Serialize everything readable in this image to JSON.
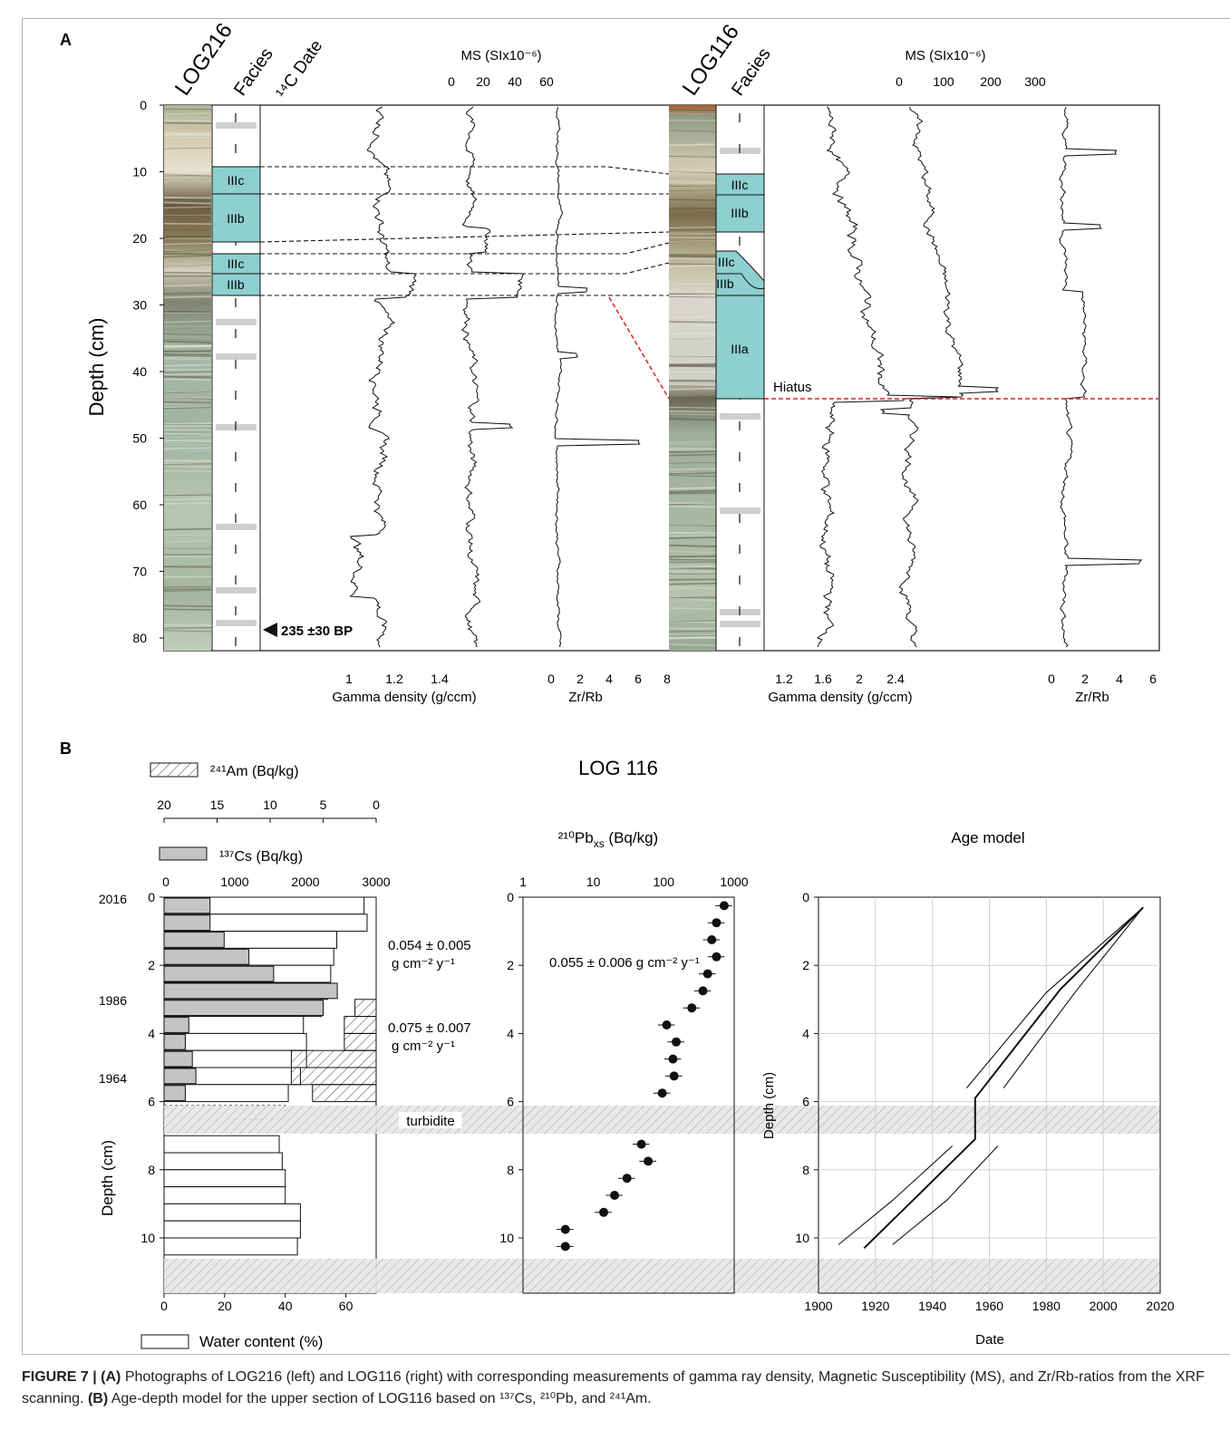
{
  "panel_a": {
    "label": "A",
    "core_left": "LOG216",
    "core_right": "LOG116",
    "facies": "Facies",
    "date_header": "¹⁴C Date",
    "ms_header": "MS (SIx10⁻⁶)",
    "depth_label": "Depth (cm)",
    "date_marker": "235 ±30 BP",
    "hiatus": "Hiatus",
    "gamma_label": "Gamma density (g/ccm)",
    "zr_label": "Zr/Rb",
    "units_left": [
      "IIIc",
      "IIIb",
      "IIIc",
      "IIIb"
    ],
    "units_right": [
      "IIIc",
      "IIIb",
      "IIIc",
      "IIIb",
      "IIIa"
    ],
    "depth_ticks": [
      "0",
      "10",
      "20",
      "30",
      "40",
      "50",
      "60",
      "70",
      "80"
    ],
    "ms_ticks_left": [
      "0",
      "20",
      "40",
      "60"
    ],
    "ms_ticks_right": [
      "0",
      "100",
      "200",
      "300"
    ],
    "gamma_ticks_left": [
      "1",
      "1.2",
      "1.4"
    ],
    "gamma_ticks_right": [
      "1.2",
      "1.6",
      "2",
      "2.4"
    ],
    "zr_ticks_left": [
      "0",
      "2",
      "4",
      "6",
      "8"
    ],
    "zr_ticks_right": [
      "0",
      "2",
      "4",
      "6"
    ]
  },
  "panel_b": {
    "label": "B",
    "title": "LOG 116",
    "am_label": "²⁴¹Am (Bq/kg)",
    "cs_label": "¹³⁷Cs (Bq/kg)",
    "water_label": "Water content (%)",
    "pb_label": "²¹⁰Pb",
    "pb_label_sub": "xs",
    "pb_label_unit": " (Bq/kg)",
    "age_title": "Age model",
    "depth_label": "Depth (cm)",
    "date_label": "Date",
    "turbidite": "turbidite",
    "years": [
      "2016",
      "1986",
      "1964"
    ],
    "rate1": "0.054 ± 0.005",
    "rate1_unit": "g cm⁻² y⁻¹",
    "rate2": "0.075 ± 0.007",
    "rate2_unit": "g cm⁻² y⁻¹",
    "rate3": "0.055 ± 0.006 g cm⁻² y⁻¹",
    "am_ticks": [
      "20",
      "15",
      "10",
      "5",
      "0"
    ],
    "cs_ticks": [
      "0",
      "1000",
      "2000",
      "3000"
    ],
    "water_ticks": [
      "0",
      "20",
      "40",
      "60"
    ],
    "pb_ticks": [
      "1",
      "10",
      "100",
      "1000"
    ],
    "date_ticks": [
      "1900",
      "1920",
      "1940",
      "1960",
      "1980",
      "2000",
      "2020"
    ],
    "depth_ticks": [
      "0",
      "2",
      "4",
      "6",
      "8",
      "10"
    ]
  },
  "chart_data": [
    {
      "type": "bar",
      "title": "",
      "xlabel": "¹³⁷Cs (Bq/kg)",
      "ylabel": "Depth (cm)",
      "categories": [
        "0.25",
        "0.75",
        "1.25",
        "1.75",
        "2.25",
        "2.75",
        "3.25",
        "3.75",
        "4.25",
        "4.75",
        "5.25",
        "5.75"
      ],
      "series": [
        {
          "name": "¹³⁷Cs (Bq/kg)",
          "values": [
            650,
            650,
            850,
            1200,
            1550,
            2450,
            2250,
            350,
            300,
            400,
            450,
            300
          ]
        },
        {
          "name": "Water content (%)",
          "values": [
            66,
            67,
            57,
            56,
            55,
            54,
            52,
            46,
            47,
            47,
            45,
            41
          ]
        },
        {
          "name": "²⁴¹Am (Bq/kg)",
          "values": [
            0,
            0,
            0,
            0,
            0,
            0,
            2,
            3,
            3,
            8,
            8,
            6
          ]
        }
      ],
      "lower_water_content": {
        "depths": [
          7.25,
          7.75,
          8.25,
          8.75,
          9.25,
          9.75,
          10.25
        ],
        "values": [
          38,
          39,
          40,
          40,
          45,
          45,
          44
        ]
      },
      "xlim_cs": [
        0,
        3000
      ],
      "xlim_water": [
        0,
        70
      ],
      "ylim": [
        0,
        11.5
      ]
    },
    {
      "type": "scatter",
      "title": "",
      "xlabel": "²¹⁰Pbxs (Bq/kg)",
      "ylabel": "",
      "x_scale": "log",
      "x": [
        720,
        560,
        480,
        560,
        420,
        360,
        250,
        110,
        150,
        135,
        140,
        95,
        48,
        60,
        30,
        20,
        14,
        4,
        4
      ],
      "y": [
        0.25,
        0.75,
        1.25,
        1.75,
        2.25,
        2.75,
        3.25,
        3.75,
        4.25,
        4.75,
        5.25,
        5.75,
        7.25,
        7.75,
        8.25,
        8.75,
        9.25,
        9.75,
        10.25
      ],
      "xlim": [
        1,
        1000
      ],
      "ylim": [
        0,
        11.5
      ]
    },
    {
      "type": "line",
      "title": "Age model",
      "xlabel": "Date",
      "ylabel": "Depth (cm)",
      "series": [
        {
          "name": "",
          "x": [
            2014,
            1985,
            1955,
            1955,
            1938,
            1916
          ],
          "y": [
            0.3,
            2.7,
            5.9,
            7.1,
            8.5,
            10.3
          ]
        },
        {
          "name": "",
          "x": [
            2014,
            1980,
            1952
          ],
          "y": [
            0.3,
            2.8,
            5.6
          ]
        },
        {
          "name": "",
          "x": [
            2014,
            1990,
            1965
          ],
          "y": [
            0.3,
            2.8,
            5.6
          ]
        },
        {
          "name": "",
          "x": [
            1947,
            1926,
            1907
          ],
          "y": [
            7.3,
            8.9,
            10.2
          ]
        },
        {
          "name": "",
          "x": [
            1963,
            1945,
            1926
          ],
          "y": [
            7.3,
            8.9,
            10.2
          ]
        }
      ],
      "xlim": [
        1900,
        2020
      ],
      "ylim": [
        0,
        11.5
      ],
      "grid": true
    }
  ],
  "caption": {
    "lead": "FIGURE 7 | ",
    "a": "(A)",
    "a_text": " Photographs of LOG216 (left) and LOG116 (right) with corresponding measurements of gamma ray density, Magnetic Susceptibility (MS), and Zr/Rb-ratios from the XRF scanning. ",
    "b": "(B)",
    "b_text": " Age-depth model for the upper section of LOG116 based on ¹³⁷Cs, ²¹⁰Pb, and ²⁴¹Am."
  }
}
